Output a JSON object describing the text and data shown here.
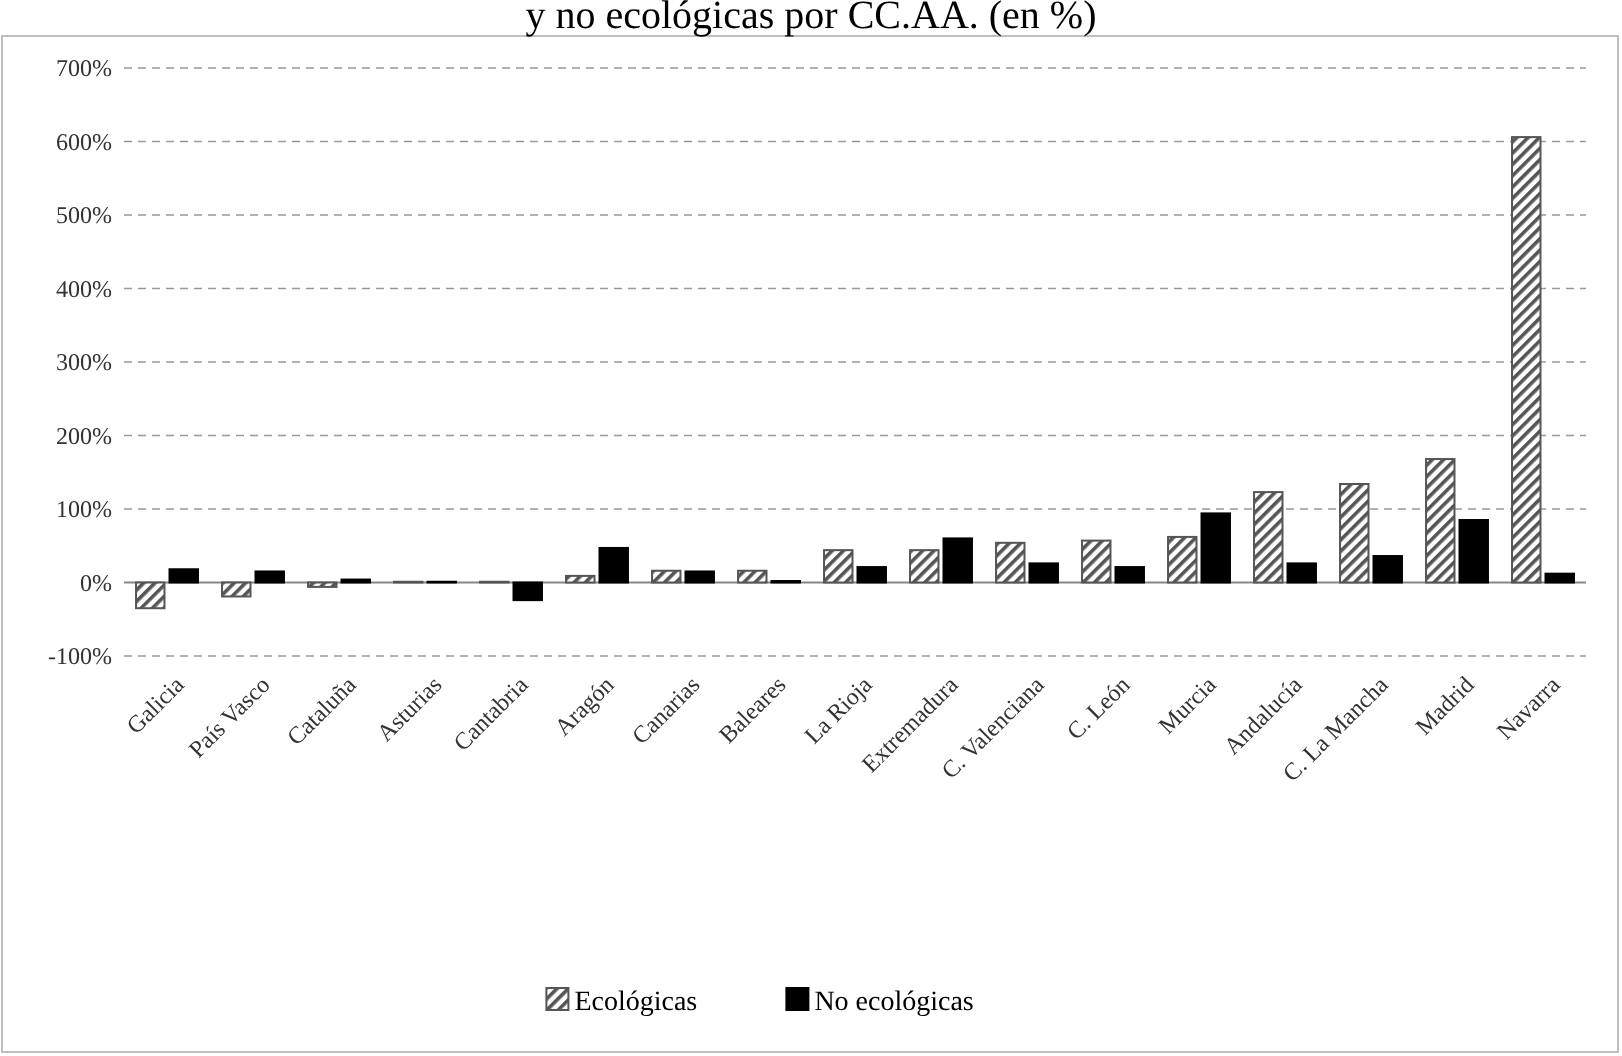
{
  "chart_data": {
    "type": "bar",
    "title": "y no ecológicas por CC.AA. (en %)",
    "categories": [
      "Galicia",
      "País Vasco",
      "Cataluña",
      "Asturias",
      "Cantabria",
      "Aragón",
      "Canarias",
      "Baleares",
      "La Rioja",
      "Extremadura",
      "C. Valenciana",
      "C. León",
      "Murcia",
      "Andalucía",
      "C. La Mancha",
      "Madrid",
      "Navarra"
    ],
    "series": [
      {
        "name": "Ecológicas",
        "color": "#555555",
        "values": [
          -35,
          -19,
          -6,
          1,
          1,
          9,
          16,
          16,
          44,
          44,
          54,
          57,
          62,
          123,
          134,
          168,
          606
        ]
      },
      {
        "name": "No ecológicas",
        "color": "#000000",
        "values": [
          18,
          15,
          4,
          1,
          -24,
          47,
          15,
          2,
          21,
          60,
          26,
          21,
          94,
          26,
          36,
          85,
          12
        ]
      }
    ],
    "ylim": [
      -100,
      700
    ],
    "yticks": [
      {
        "value": -100,
        "label": "-100%"
      },
      {
        "value": 0,
        "label": "0%"
      },
      {
        "value": 100,
        "label": "100%"
      },
      {
        "value": 200,
        "label": "200%"
      },
      {
        "value": 300,
        "label": "300%"
      },
      {
        "value": 400,
        "label": "400%"
      },
      {
        "value": 500,
        "label": "500%"
      },
      {
        "value": 600,
        "label": "600%"
      },
      {
        "value": 700,
        "label": "700%"
      }
    ],
    "grid": "y",
    "legend": "bottom"
  }
}
